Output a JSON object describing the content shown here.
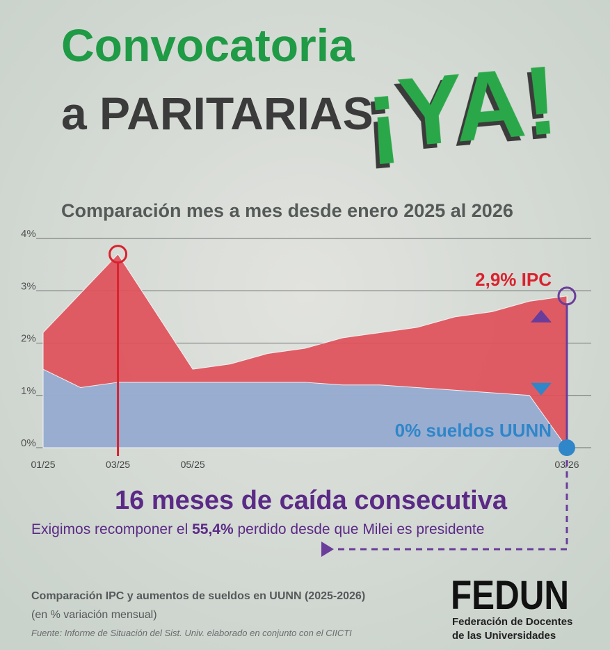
{
  "header": {
    "line1": "Convocatoria",
    "line2": "a PARITARIAS",
    "exclaim": "¡YA!"
  },
  "chart_data": {
    "type": "area",
    "title": "Comparación mes a mes desde enero 2025 al 2026",
    "categories": [
      "01/25",
      null,
      "03/25",
      null,
      "05/25",
      null,
      null,
      null,
      null,
      null,
      null,
      null,
      null,
      null,
      "03/26"
    ],
    "series": [
      {
        "name": "IPC",
        "color": "#e0505a",
        "values": [
          2.2,
          2.95,
          3.7,
          2.6,
          1.5,
          1.6,
          1.8,
          1.9,
          2.1,
          2.2,
          2.3,
          2.5,
          2.6,
          2.8,
          2.9
        ],
        "value_labels": [
          null,
          null,
          null,
          null,
          null,
          null,
          null,
          null,
          null,
          null,
          null,
          null,
          null,
          null,
          "2,9%"
        ]
      },
      {
        "name": "sueldos UUNN",
        "color": "#93b4da",
        "values": [
          1.5,
          1.15,
          1.25,
          1.25,
          1.25,
          1.25,
          1.25,
          1.25,
          1.2,
          1.2,
          1.15,
          1.1,
          1.05,
          1.0,
          0
        ],
        "value_labels": [
          null,
          null,
          null,
          null,
          null,
          null,
          null,
          null,
          null,
          null,
          null,
          null,
          null,
          null,
          "0%"
        ]
      }
    ],
    "ylim": [
      0,
      4
    ],
    "yticks": [
      {
        "value": 0,
        "label": "0%"
      },
      {
        "value": 1,
        "label": "1%"
      },
      {
        "value": 2,
        "label": "2%"
      },
      {
        "value": 3,
        "label": "3%"
      },
      {
        "value": 4,
        "label": "4%"
      }
    ],
    "grid": true
  },
  "message": {
    "headline": "16 meses de caída consecutiva",
    "sub_before": "Exigimos recomponer el",
    "sub_bold": "55,4%",
    "sub_after": "perdido desde que Milei es presidente"
  },
  "footer": {
    "title": "Comparación IPC y aumentos de sueldos en UUNN (2025-2026)",
    "unit": "(en % variación mensual)",
    "source": "Fuente: Informe de Situación del Sist. Univ. elaborado en conjunto con el CIICTI"
  },
  "logo": {
    "name": "FEDUN",
    "line1": "Federación de Docentes",
    "line2": "de las Universidades"
  }
}
